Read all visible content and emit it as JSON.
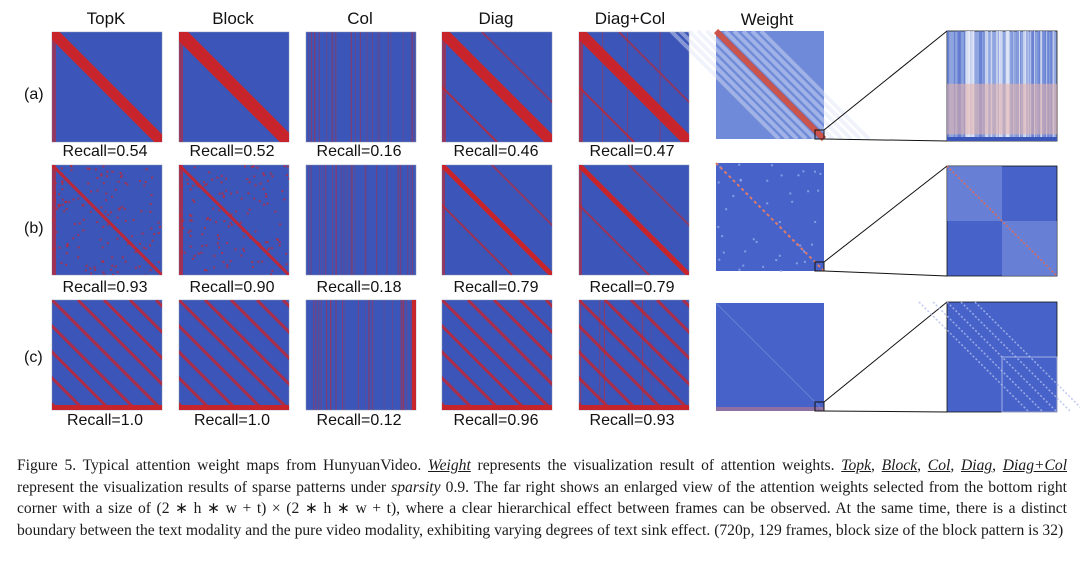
{
  "figure": {
    "columns": [
      "TopK",
      "Block",
      "Col",
      "Diag",
      "Diag+Col",
      "Weight"
    ],
    "rows": [
      {
        "label": "(a)",
        "recalls": [
          "Recall=0.54",
          "Recall=0.52",
          "Recall=0.16",
          "Recall=0.46",
          "Recall=0.47"
        ]
      },
      {
        "label": "(b)",
        "recalls": [
          "Recall=0.93",
          "Recall=0.90",
          "Recall=0.18",
          "Recall=0.79",
          "Recall=0.79"
        ]
      },
      {
        "label": "(c)",
        "recalls": [
          "Recall=1.0",
          "Recall=1.0",
          "Recall=0.12",
          "Recall=0.96",
          "Recall=0.93"
        ]
      }
    ],
    "colors": {
      "background_map": "#3b56b8",
      "highlight": "#c8242c",
      "weight_bg": "#4763c9"
    }
  },
  "caption": {
    "fig_label": "Figure 5.",
    "t1": " Typical attention weight maps from HunyuanVideo. ",
    "w_weight": "Weight",
    "t2": " represents the visualization result of attention weights. ",
    "w_topk": "Topk",
    "sep1": ", ",
    "w_block": "Block",
    "sep2": ", ",
    "w_col": "Col",
    "sep3": ", ",
    "w_diag": "Diag",
    "sep4": ", ",
    "w_diagcol": "Diag+Col",
    "t3": " represent the visualization results of sparse patterns under ",
    "w_sparsity": "sparsity",
    "t4": " 0.9. The far right shows an enlarged view of the attention weights selected from the bottom right corner with a size of (2 ∗ h ∗ w + t) × (2 ∗ h ∗ w + t), where a clear hierarchical effect between frames can be observed. At the same time, there is a distinct boundary between the text modality and the pure video modality, exhibiting varying degrees of text sink effect. (720p, 129 frames, block size of the block pattern is 32)"
  }
}
